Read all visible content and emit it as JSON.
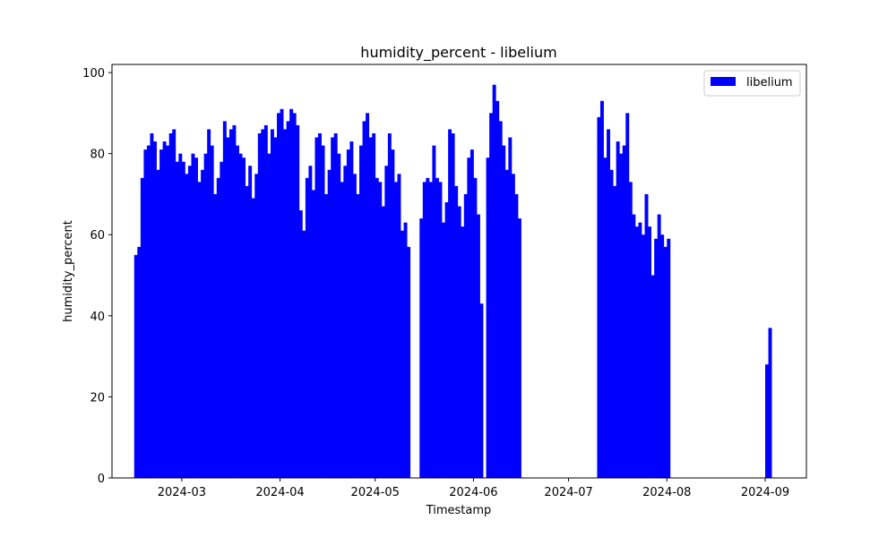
{
  "chart_data": {
    "type": "bar",
    "title": "humidity_percent - libelium",
    "xlabel": "Timestamp",
    "ylabel": "humidity_percent",
    "ylim": [
      0,
      102
    ],
    "xlim": [
      "2024-02-08",
      "2024-09-14"
    ],
    "grid": false,
    "legend_position": "top-right",
    "x_ticks": [
      "2024-03",
      "2024-04",
      "2024-05",
      "2024-06",
      "2024-07",
      "2024-08",
      "2024-09"
    ],
    "y_ticks": [
      0,
      20,
      40,
      60,
      80,
      100
    ],
    "series": [
      {
        "name": "libelium",
        "color": "#0000ff",
        "points": [
          [
            "2024-02-15",
            55
          ],
          [
            "2024-02-16",
            57
          ],
          [
            "2024-02-17",
            74
          ],
          [
            "2024-02-18",
            81
          ],
          [
            "2024-02-19",
            82
          ],
          [
            "2024-02-20",
            85
          ],
          [
            "2024-02-21",
            83
          ],
          [
            "2024-02-22",
            76
          ],
          [
            "2024-02-23",
            81
          ],
          [
            "2024-02-24",
            83
          ],
          [
            "2024-02-25",
            82
          ],
          [
            "2024-02-26",
            85
          ],
          [
            "2024-02-27",
            86
          ],
          [
            "2024-02-28",
            78
          ],
          [
            "2024-02-29",
            80
          ],
          [
            "2024-03-01",
            78
          ],
          [
            "2024-03-02",
            75
          ],
          [
            "2024-03-03",
            77
          ],
          [
            "2024-03-04",
            80
          ],
          [
            "2024-03-05",
            79
          ],
          [
            "2024-03-06",
            73
          ],
          [
            "2024-03-07",
            76
          ],
          [
            "2024-03-08",
            80
          ],
          [
            "2024-03-09",
            86
          ],
          [
            "2024-03-10",
            82
          ],
          [
            "2024-03-11",
            70
          ],
          [
            "2024-03-12",
            74
          ],
          [
            "2024-03-13",
            78
          ],
          [
            "2024-03-14",
            88
          ],
          [
            "2024-03-15",
            84
          ],
          [
            "2024-03-16",
            86
          ],
          [
            "2024-03-17",
            87
          ],
          [
            "2024-03-18",
            82
          ],
          [
            "2024-03-19",
            80
          ],
          [
            "2024-03-20",
            79
          ],
          [
            "2024-03-21",
            72
          ],
          [
            "2024-03-22",
            77
          ],
          [
            "2024-03-23",
            69
          ],
          [
            "2024-03-24",
            75
          ],
          [
            "2024-03-25",
            85
          ],
          [
            "2024-03-26",
            86
          ],
          [
            "2024-03-27",
            87
          ],
          [
            "2024-03-28",
            80
          ],
          [
            "2024-03-29",
            86
          ],
          [
            "2024-03-30",
            84
          ],
          [
            "2024-03-31",
            90
          ],
          [
            "2024-04-01",
            91
          ],
          [
            "2024-04-02",
            86
          ],
          [
            "2024-04-03",
            88
          ],
          [
            "2024-04-04",
            91
          ],
          [
            "2024-04-05",
            90
          ],
          [
            "2024-04-06",
            87
          ],
          [
            "2024-04-07",
            66
          ],
          [
            "2024-04-08",
            61
          ],
          [
            "2024-04-09",
            74
          ],
          [
            "2024-04-10",
            77
          ],
          [
            "2024-04-11",
            71
          ],
          [
            "2024-04-12",
            84
          ],
          [
            "2024-04-13",
            85
          ],
          [
            "2024-04-14",
            82
          ],
          [
            "2024-04-15",
            70
          ],
          [
            "2024-04-16",
            76
          ],
          [
            "2024-04-17",
            84
          ],
          [
            "2024-04-18",
            85
          ],
          [
            "2024-04-19",
            80
          ],
          [
            "2024-04-20",
            73
          ],
          [
            "2024-04-21",
            77
          ],
          [
            "2024-04-22",
            81
          ],
          [
            "2024-04-23",
            83
          ],
          [
            "2024-04-24",
            75
          ],
          [
            "2024-04-25",
            70
          ],
          [
            "2024-04-26",
            82
          ],
          [
            "2024-04-27",
            88
          ],
          [
            "2024-04-28",
            90
          ],
          [
            "2024-04-29",
            84
          ],
          [
            "2024-04-30",
            85
          ],
          [
            "2024-05-01",
            74
          ],
          [
            "2024-05-02",
            73
          ],
          [
            "2024-05-03",
            67
          ],
          [
            "2024-05-04",
            77
          ],
          [
            "2024-05-05",
            85
          ],
          [
            "2024-05-06",
            81
          ],
          [
            "2024-05-07",
            73
          ],
          [
            "2024-05-08",
            75
          ],
          [
            "2024-05-09",
            61
          ],
          [
            "2024-05-10",
            63
          ],
          [
            "2024-05-11",
            57
          ],
          [
            "2024-05-15",
            64
          ],
          [
            "2024-05-16",
            73
          ],
          [
            "2024-05-17",
            74
          ],
          [
            "2024-05-18",
            73
          ],
          [
            "2024-05-19",
            82
          ],
          [
            "2024-05-20",
            74
          ],
          [
            "2024-05-21",
            73
          ],
          [
            "2024-05-22",
            63
          ],
          [
            "2024-05-23",
            68
          ],
          [
            "2024-05-24",
            86
          ],
          [
            "2024-05-25",
            85
          ],
          [
            "2024-05-26",
            72
          ],
          [
            "2024-05-27",
            67
          ],
          [
            "2024-05-28",
            62
          ],
          [
            "2024-05-29",
            70
          ],
          [
            "2024-05-30",
            79
          ],
          [
            "2024-05-31",
            81
          ],
          [
            "2024-06-01",
            74
          ],
          [
            "2024-06-02",
            65
          ],
          [
            "2024-06-03",
            43
          ],
          [
            "2024-06-05",
            79
          ],
          [
            "2024-06-06",
            90
          ],
          [
            "2024-06-07",
            97
          ],
          [
            "2024-06-08",
            93
          ],
          [
            "2024-06-09",
            88
          ],
          [
            "2024-06-10",
            82
          ],
          [
            "2024-06-11",
            76
          ],
          [
            "2024-06-12",
            84
          ],
          [
            "2024-06-13",
            75
          ],
          [
            "2024-06-14",
            70
          ],
          [
            "2024-06-15",
            64
          ],
          [
            "2024-07-10",
            89
          ],
          [
            "2024-07-11",
            93
          ],
          [
            "2024-07-12",
            79
          ],
          [
            "2024-07-13",
            86
          ],
          [
            "2024-07-14",
            76
          ],
          [
            "2024-07-15",
            72
          ],
          [
            "2024-07-16",
            83
          ],
          [
            "2024-07-17",
            80
          ],
          [
            "2024-07-18",
            82
          ],
          [
            "2024-07-19",
            90
          ],
          [
            "2024-07-20",
            73
          ],
          [
            "2024-07-21",
            65
          ],
          [
            "2024-07-22",
            62
          ],
          [
            "2024-07-23",
            63
          ],
          [
            "2024-07-24",
            60
          ],
          [
            "2024-07-25",
            70
          ],
          [
            "2024-07-26",
            62
          ],
          [
            "2024-07-27",
            50
          ],
          [
            "2024-07-28",
            59
          ],
          [
            "2024-07-29",
            65
          ],
          [
            "2024-07-30",
            60
          ],
          [
            "2024-07-31",
            57
          ],
          [
            "2024-08-01",
            59
          ],
          [
            "2024-09-01",
            28
          ],
          [
            "2024-09-02",
            37
          ]
        ]
      }
    ]
  }
}
